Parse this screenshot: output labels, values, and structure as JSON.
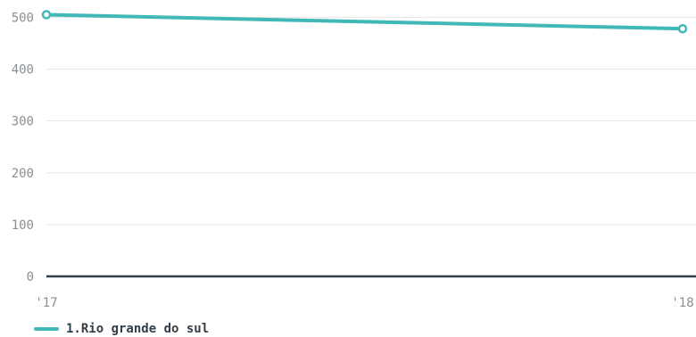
{
  "chart_data": {
    "type": "line",
    "x": [
      "'17",
      "'18"
    ],
    "series": [
      {
        "name": "1.Rio grande do sul",
        "values": [
          505,
          478
        ]
      }
    ],
    "yticks": [
      0,
      100,
      200,
      300,
      400,
      500
    ],
    "ylim": [
      0,
      505
    ],
    "grid": true,
    "legend_position": "bottom-left",
    "colors": {
      "series": "#40b8b8",
      "grid": "#e6e6e6",
      "baseline": "#333e48",
      "tick_text": "#8a8f93",
      "legend_text": "#333e48"
    }
  },
  "legend": {
    "label": "1.Rio grande do sul"
  }
}
